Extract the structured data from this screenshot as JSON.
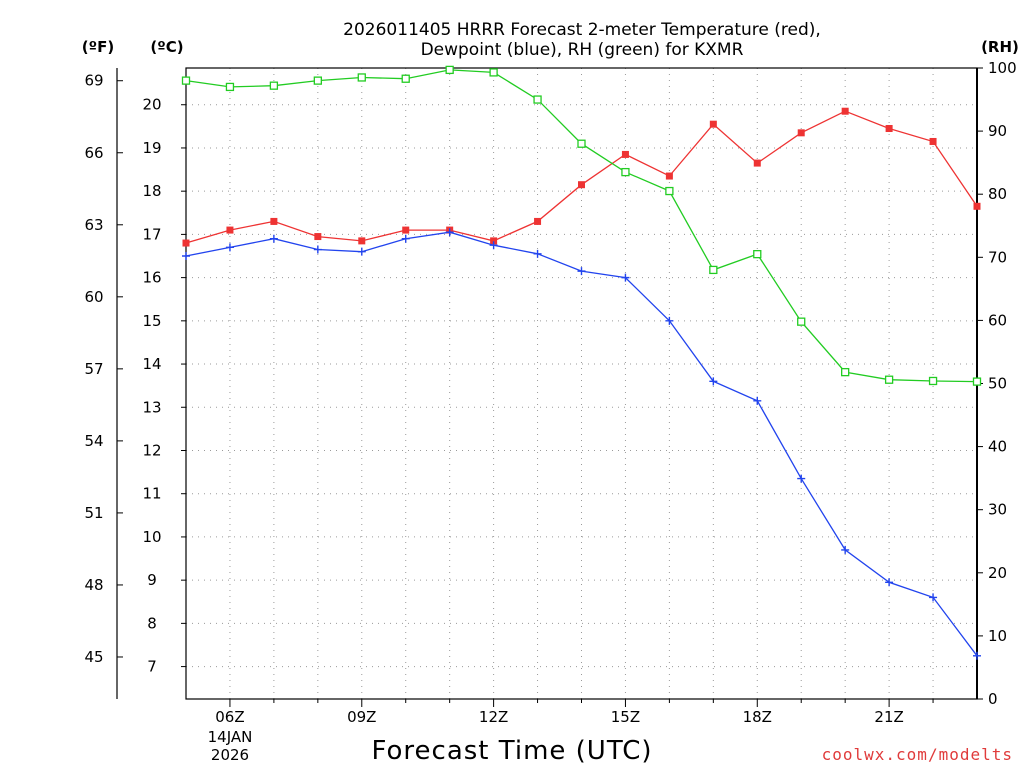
{
  "chart_data": {
    "type": "line",
    "title_line1": "2026011405 HRRR Forecast 2-meter Temperature (red),",
    "title_line2": "Dewpoint (blue), RH (green) for KXMR",
    "xlabel": "Forecast Time (UTC)",
    "credit": "coolwx.com/modelts",
    "date_label_line1": "14JAN",
    "date_label_line2": "2026",
    "unit_left_f": "(ºF)",
    "unit_left_c": "(ºC)",
    "unit_right": "(RH)",
    "x": [
      5,
      6,
      7,
      8,
      9,
      10,
      11,
      12,
      13,
      14,
      15,
      16,
      17,
      18,
      19,
      20,
      21,
      22,
      23
    ],
    "xlim": [
      5,
      23
    ],
    "x_ticks": [
      {
        "value": 6,
        "label": "06Z"
      },
      {
        "value": 9,
        "label": "09Z"
      },
      {
        "value": 12,
        "label": "12Z"
      },
      {
        "value": 15,
        "label": "15Z"
      },
      {
        "value": 18,
        "label": "18Z"
      },
      {
        "value": 21,
        "label": "21Z"
      }
    ],
    "ylim_c": [
      6.25,
      20.85
    ],
    "ylim_rh": [
      0,
      100
    ],
    "y_ticks_c": [
      7,
      8,
      9,
      10,
      11,
      12,
      13,
      14,
      15,
      16,
      17,
      18,
      19,
      20
    ],
    "y_ticks_f": [
      45,
      48,
      51,
      54,
      57,
      60,
      63,
      66,
      69
    ],
    "y_ticks_rh": [
      0,
      10,
      20,
      30,
      40,
      50,
      60,
      70,
      80,
      90,
      100
    ],
    "series": [
      {
        "name": "Temperature",
        "color": "#ee3333",
        "marker": "filled-square",
        "axis": "celsius",
        "values": [
          16.8,
          17.1,
          17.3,
          16.95,
          16.85,
          17.1,
          17.1,
          16.85,
          17.3,
          18.15,
          18.85,
          18.35,
          19.55,
          18.65,
          19.35,
          19.85,
          19.45,
          19.15,
          17.65
        ]
      },
      {
        "name": "Dewpoint",
        "color": "#2244ee",
        "marker": "plus",
        "axis": "celsius",
        "values": [
          16.5,
          16.7,
          16.9,
          16.65,
          16.6,
          16.9,
          17.05,
          16.75,
          16.55,
          16.15,
          16.0,
          15.0,
          13.6,
          13.15,
          11.35,
          9.7,
          8.95,
          8.6,
          7.25
        ]
      },
      {
        "name": "RH",
        "color": "#22cc22",
        "marker": "open-square",
        "axis": "rh",
        "values": [
          98,
          97,
          97.2,
          98,
          98.5,
          98.3,
          99.7,
          99.3,
          95,
          88,
          83.5,
          80.5,
          68,
          70.5,
          59.8,
          51.8,
          50.6,
          50.4,
          50.3
        ]
      }
    ]
  }
}
